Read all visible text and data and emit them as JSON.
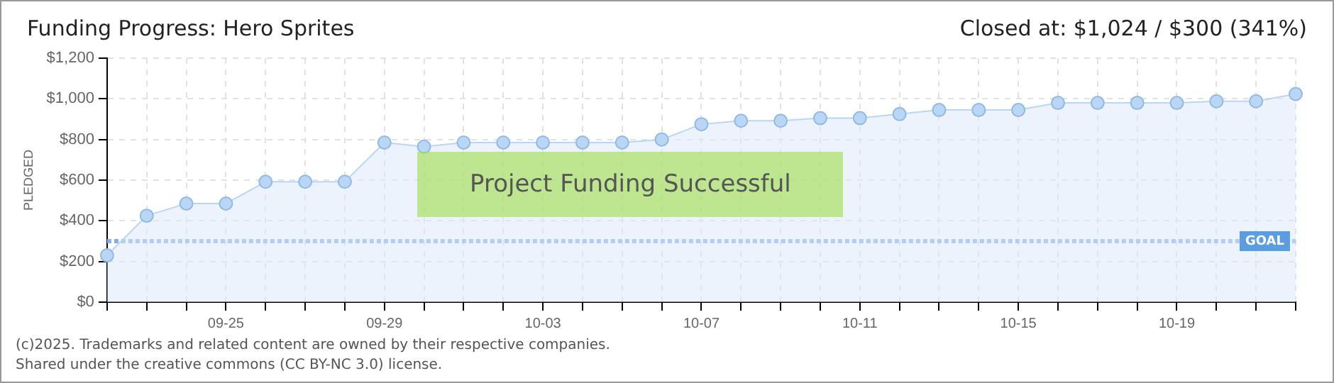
{
  "chart_data": {
    "type": "area",
    "title": "Funding Progress: Hero Sprites",
    "subtitle": "Closed at: $1,024 / $300 (341%)",
    "ylabel": "PLEDGED",
    "categories": [
      null,
      null,
      null,
      "09-25",
      null,
      null,
      null,
      "09-29",
      null,
      null,
      null,
      "10-03",
      null,
      null,
      null,
      "10-07",
      null,
      null,
      null,
      "10-11",
      null,
      null,
      null,
      "10-15",
      null,
      null,
      null,
      "10-19",
      null,
      null,
      null
    ],
    "series": [
      {
        "color": "#b9d6f5",
        "values": [
          230,
          425,
          485,
          485,
          592,
          592,
          592,
          785,
          765,
          785,
          785,
          785,
          785,
          785,
          800,
          875,
          892,
          892,
          905,
          905,
          925,
          945,
          945,
          945,
          980,
          980,
          980,
          980,
          988,
          988,
          1024
        ]
      }
    ],
    "ylim": [
      0,
      1200
    ],
    "yticks": [
      {
        "value": 0,
        "label": "$0"
      },
      {
        "value": 200,
        "label": "$200"
      },
      {
        "value": 400,
        "label": "$400"
      },
      {
        "value": 600,
        "label": "$600"
      },
      {
        "value": 800,
        "label": "$800"
      },
      {
        "value": 1000,
        "label": "$1,000"
      },
      {
        "value": 1200,
        "label": "$1,200"
      }
    ],
    "ref_lines": [
      {
        "axis": "y",
        "value": 300,
        "label": "GOAL",
        "color": "#7fb0e6",
        "line_style": "dotted"
      }
    ],
    "annotations": [
      "Project Funding Successful",
      "(c)2025. Trademarks and related content are owned by their respective companies.",
      "Shared under the creative commons (CC BY-NC 3.0) license."
    ],
    "grid": true,
    "marker": "circle",
    "legend": false
  }
}
